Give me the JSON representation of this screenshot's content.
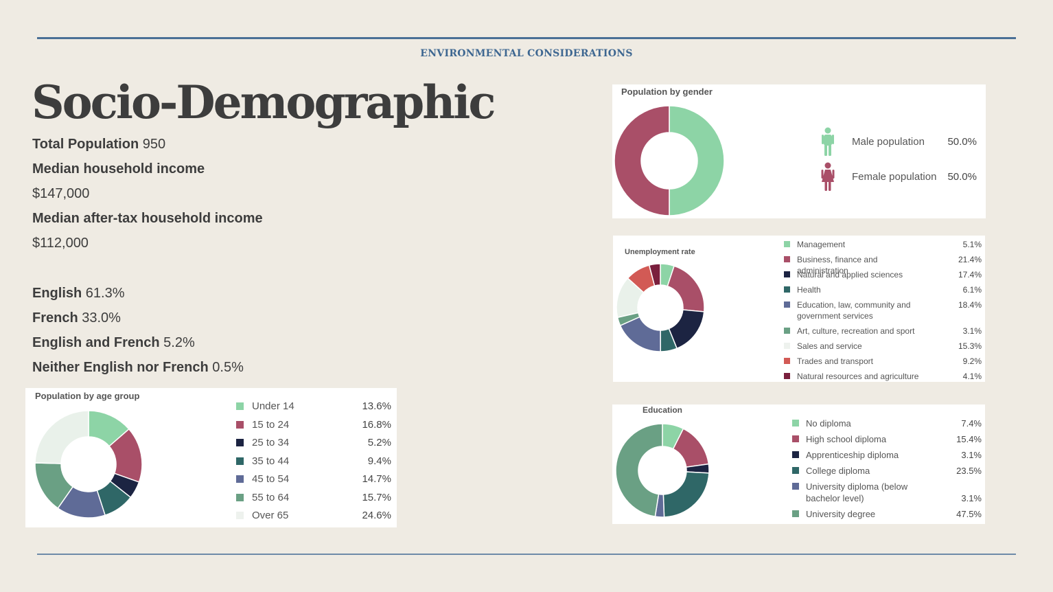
{
  "header": {
    "section": "ENVIRONMENTAL CONSIDERATIONS",
    "title": "Socio-Demographic"
  },
  "stats": [
    {
      "label": "Total Population",
      "value": "950"
    },
    {
      "label": "Median household income",
      "value": ""
    },
    {
      "label": "",
      "value": "$147,000"
    },
    {
      "label": "Median after-tax household income",
      "value": ""
    },
    {
      "label": "",
      "value": "$112,000"
    },
    {
      "label": "English",
      "value": "61.3%"
    },
    {
      "label": "French",
      "value": "33.0%"
    },
    {
      "label": "English and French",
      "value": "5.2%"
    },
    {
      "label": "Neither English nor French",
      "value": "0.5%"
    }
  ],
  "chart_data": [
    {
      "id": "age",
      "type": "pie",
      "title": "Population by age group",
      "categories": [
        "Under 14",
        "15 to 24",
        "25 to 34",
        "35 to 44",
        "45 to 54",
        "55 to 64",
        "Over 65"
      ],
      "values": [
        13.6,
        16.8,
        5.2,
        9.4,
        14.7,
        15.7,
        24.6
      ],
      "labels": [
        "13.6%",
        "16.8%",
        "5.2%",
        "9.4%",
        "14.7%",
        "15.7%",
        "24.6%"
      ],
      "colors": [
        "#8dd4a6",
        "#a94f68",
        "#1c2442",
        "#2f6767",
        "#5f6b97",
        "#6aa084",
        "#e9f1ea"
      ],
      "legend_position": "right"
    },
    {
      "id": "gender",
      "type": "pie",
      "title": "Population by gender",
      "categories": [
        "Male population",
        "Female population"
      ],
      "values": [
        50.0,
        50.0
      ],
      "labels": [
        "50.0%",
        "50.0%"
      ],
      "colors": [
        "#8dd4a6",
        "#a94f68"
      ],
      "icons": [
        "male-figure-icon",
        "female-figure-icon"
      ],
      "legend_position": "right"
    },
    {
      "id": "unemployment",
      "type": "pie",
      "title": "Unemployment rate",
      "categories": [
        "Management",
        "Business, finance and administration",
        "Natural and applied sciences",
        "Health",
        "Education, law, community and government services",
        "Art, culture, recreation and sport",
        "Sales and service",
        "Trades and transport",
        "Natural resources and agriculture"
      ],
      "values": [
        5.1,
        21.4,
        17.4,
        6.1,
        18.4,
        3.1,
        15.3,
        9.2,
        4.1
      ],
      "labels": [
        "5.1%",
        "21.4%",
        "17.4%",
        "6.1%",
        "18.4%",
        "3.1%",
        "15.3%",
        "9.2%",
        "4.1%"
      ],
      "colors": [
        "#8dd4a6",
        "#a94f68",
        "#1c2442",
        "#2f6767",
        "#5f6b97",
        "#6aa084",
        "#e9f1ea",
        "#d25a55",
        "#7a1f3d"
      ],
      "legend_position": "right"
    },
    {
      "id": "education",
      "type": "pie",
      "title": "Education",
      "categories": [
        "No diploma",
        "High school diploma",
        "Apprenticeship diploma",
        "College diploma",
        "University diploma (below bachelor level)",
        "University degree"
      ],
      "values": [
        7.4,
        15.4,
        3.1,
        23.5,
        3.1,
        47.5
      ],
      "labels": [
        "7.4%",
        "15.4%",
        "3.1%",
        "23.5%",
        "3.1%",
        "47.5%"
      ],
      "colors": [
        "#8dd4a6",
        "#a94f68",
        "#1c2442",
        "#2f6767",
        "#5f6b97",
        "#6aa084"
      ],
      "legend_position": "right"
    }
  ]
}
